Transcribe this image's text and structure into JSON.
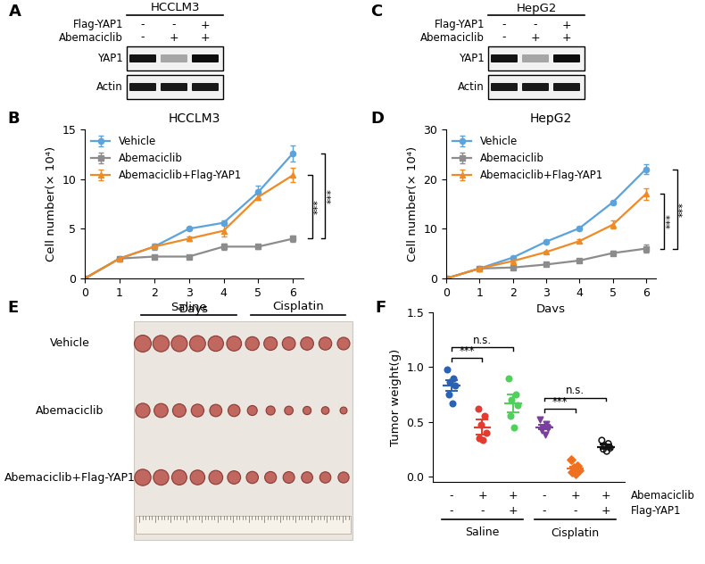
{
  "chart_data": [
    {
      "panel": "B",
      "type": "line",
      "title": "HCCLM3",
      "x_label": "Days",
      "y_label": "Cell number(× 10⁴)",
      "x": [
        0,
        1,
        2,
        3,
        4,
        5,
        6
      ],
      "xlim": [
        0,
        6.3
      ],
      "xticks": [
        0,
        1,
        2,
        3,
        4,
        5,
        6
      ],
      "ylim": [
        0,
        15
      ],
      "yticks": [
        0,
        5,
        10,
        15
      ],
      "legend": "upper left",
      "series": [
        {
          "name": "Vehicle",
          "color": "#5ba3dc",
          "marker": "circle",
          "values": [
            0,
            2,
            3.2,
            5,
            5.6,
            8.7,
            12.6
          ],
          "errors": [
            0,
            0.1,
            0.3,
            0.15,
            0.2,
            0.6,
            0.8
          ]
        },
        {
          "name": "Abemaciclib",
          "color": "#8c8c8c",
          "marker": "square",
          "values": [
            0,
            2,
            2.2,
            2.2,
            3.2,
            3.2,
            4.0
          ],
          "errors": [
            0,
            0.1,
            0.1,
            0.1,
            0.3,
            0.2,
            0.3
          ]
        },
        {
          "name": "Abemaciclib+Flag-YAP1",
          "color": "#f08a24",
          "marker": "triangle",
          "values": [
            0,
            2,
            3.2,
            4.0,
            4.8,
            8.2,
            10.4
          ],
          "errors": [
            0,
            0.1,
            0.2,
            0.2,
            0.6,
            0.3,
            0.7
          ]
        }
      ],
      "significance": [
        {
          "between": [
            "Abemaciclib+Flag-YAP1",
            "Abemaciclib"
          ],
          "label": "***"
        },
        {
          "between": [
            "Vehicle",
            "Abemaciclib"
          ],
          "label": "***"
        }
      ]
    },
    {
      "panel": "D",
      "type": "line",
      "title": "HepG2",
      "x_label": "Days",
      "y_label": "Cell number(× 10⁴)",
      "x": [
        0,
        1,
        2,
        3,
        4,
        5,
        6
      ],
      "xlim": [
        0,
        6.3
      ],
      "xticks": [
        0,
        1,
        2,
        3,
        4,
        5,
        6
      ],
      "ylim": [
        0,
        30
      ],
      "yticks": [
        0,
        10,
        20,
        30
      ],
      "legend": "upper left",
      "series": [
        {
          "name": "Vehicle",
          "color": "#5ba3dc",
          "marker": "circle",
          "values": [
            0,
            2,
            4.2,
            7.4,
            10.1,
            15.3,
            22
          ],
          "errors": [
            0,
            0.1,
            0.3,
            0.3,
            0.3,
            0.4,
            1.0
          ]
        },
        {
          "name": "Abemaciclib",
          "color": "#8c8c8c",
          "marker": "square",
          "values": [
            0,
            2,
            2.2,
            2.8,
            3.6,
            5.1,
            6.0
          ],
          "errors": [
            0,
            0.1,
            0.2,
            0.3,
            0.3,
            0.4,
            0.8
          ]
        },
        {
          "name": "Abemaciclib+Flag-YAP1",
          "color": "#f08a24",
          "marker": "triangle",
          "values": [
            0,
            2,
            3.5,
            5.3,
            7.5,
            10.8,
            17
          ],
          "errors": [
            0,
            0.1,
            0.3,
            0.3,
            0.4,
            0.8,
            1.2
          ]
        }
      ],
      "significance": [
        {
          "between": [
            "Abemaciclib+Flag-YAP1",
            "Abemaciclib"
          ],
          "label": "***"
        },
        {
          "between": [
            "Vehicle",
            "Abemaciclib"
          ],
          "label": "***"
        }
      ]
    },
    {
      "panel": "F",
      "type": "scatter",
      "y_label": "Tumor weight(g)",
      "categories": [
        null,
        null,
        null,
        null,
        null,
        null
      ],
      "ylim": [
        -0.05,
        1.5
      ],
      "yticks": [
        0.0,
        0.5,
        1.0,
        1.5
      ],
      "tick_labels": "y",
      "series": [
        {
          "color": "#2a63b5",
          "marker": "circle",
          "values": [
            0.98,
            0.9,
            0.86,
            0.83,
            0.75,
            0.67
          ],
          "mean": 0.83,
          "sem": 0.05
        },
        {
          "color": "#e53a2f",
          "marker": "circle",
          "values": [
            0.62,
            0.55,
            0.47,
            0.4,
            0.35,
            0.33
          ],
          "mean": 0.45,
          "sem": 0.07
        },
        {
          "color": "#4fd25a",
          "marker": "circle",
          "values": [
            0.9,
            0.75,
            0.7,
            0.65,
            0.55,
            0.45
          ],
          "mean": 0.67,
          "sem": 0.08
        },
        {
          "color": "#7b3fa0",
          "marker": "triangle_down",
          "values": [
            0.52,
            0.48,
            0.45,
            0.44,
            0.42,
            0.38
          ],
          "mean": 0.45,
          "sem": 0.02
        },
        {
          "color": "#f07020",
          "marker": "diamond",
          "values": [
            0.15,
            0.1,
            0.08,
            0.06,
            0.04,
            0.02
          ],
          "mean": 0.07,
          "sem": 0.02
        },
        {
          "color": "#111111",
          "marker": "circle_open",
          "values": [
            0.33,
            0.3,
            0.28,
            0.26,
            0.25,
            0.23
          ],
          "mean": 0.27,
          "sem": 0.02
        }
      ],
      "treatments": [
        {
          "name": "Abemaciclib",
          "signs": [
            "-",
            "+",
            "+",
            "-",
            "+",
            "+"
          ]
        },
        {
          "name": "Flag-YAP1",
          "signs": [
            "-",
            "-",
            "+",
            "-",
            "-",
            "+"
          ]
        }
      ],
      "groups": [
        "Saline",
        "Cisplatin"
      ],
      "significance": [
        {
          "between": [
            0,
            1
          ],
          "label": "***"
        },
        {
          "between": [
            0,
            2
          ],
          "label": "n.s."
        },
        {
          "between": [
            3,
            4
          ],
          "label": "***"
        },
        {
          "between": [
            3,
            5
          ],
          "label": "n.s."
        }
      ]
    }
  ],
  "blots": [
    {
      "panel": "A",
      "title": "HCCLM3",
      "conditions": [
        {
          "name": "Flag-YAP1",
          "signs": [
            "-",
            "-",
            "+"
          ]
        },
        {
          "name": "Abemaciclib",
          "signs": [
            "-",
            "+",
            "+"
          ]
        }
      ],
      "bands": [
        "YAP1",
        "Actin"
      ]
    },
    {
      "panel": "C",
      "title": "HepG2",
      "conditions": [
        {
          "name": "Flag-YAP1",
          "signs": [
            "-",
            "-",
            "+"
          ]
        },
        {
          "name": "Abemaciclib",
          "signs": [
            "-",
            "+",
            "+"
          ]
        }
      ],
      "bands": [
        "YAP1",
        "Actin"
      ]
    }
  ],
  "photo": {
    "panel": "E",
    "columns": [
      "Saline",
      "Cisplatin"
    ],
    "rows": [
      "Vehicle",
      "Abemaciclib",
      "Abemaciclib+Flag-YAP1"
    ]
  }
}
